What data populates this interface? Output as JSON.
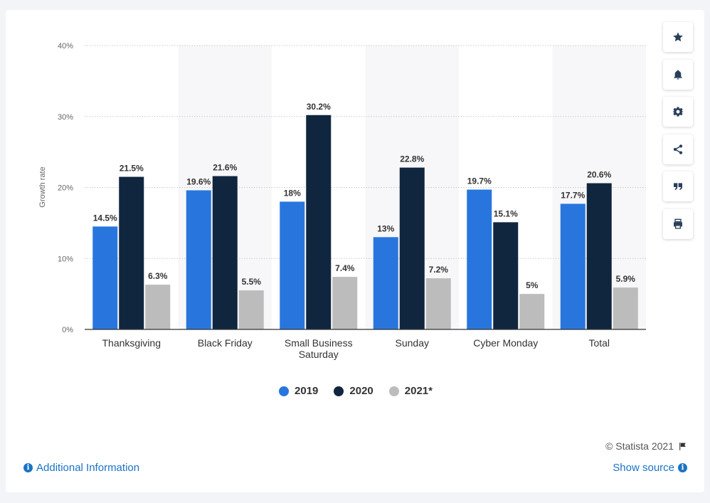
{
  "chart_data": {
    "type": "bar",
    "categories": [
      "Thanksgiving",
      "Black Friday",
      "Small Business Saturday",
      "Sunday",
      "Cyber Monday",
      "Total"
    ],
    "series": [
      {
        "name": "2019",
        "values": [
          14.5,
          19.6,
          18,
          13,
          19.7,
          17.7
        ],
        "labels": [
          "14.5%",
          "19.6%",
          "18%",
          "13%",
          "19.7%",
          "17.7%"
        ],
        "color": "#2876dd"
      },
      {
        "name": "2020",
        "values": [
          21.5,
          21.6,
          30.2,
          22.8,
          15.1,
          20.6
        ],
        "labels": [
          "21.5%",
          "21.6%",
          "30.2%",
          "22.8%",
          "15.1%",
          "20.6%"
        ],
        "color": "#10263f"
      },
      {
        "name": "2021*",
        "values": [
          6.3,
          5.5,
          7.4,
          7.2,
          5,
          5.9
        ],
        "labels": [
          "6.3%",
          "5.5%",
          "7.4%",
          "7.2%",
          "5%",
          "5.9%"
        ],
        "color": "#bcbcbc"
      }
    ],
    "ylabel": "Growth rate",
    "ylim": [
      0,
      40
    ],
    "yticks": [
      0,
      10,
      20,
      30,
      40
    ],
    "ytick_labels": [
      "0%",
      "10%",
      "20%",
      "30%",
      "40%"
    ],
    "grid": true,
    "legend_position": "bottom"
  },
  "sidebar": {
    "buttons": [
      {
        "icon": "star-icon",
        "name": "favorite-button"
      },
      {
        "icon": "bell-icon",
        "name": "notification-button"
      },
      {
        "icon": "gear-icon",
        "name": "settings-button"
      },
      {
        "icon": "share-icon",
        "name": "share-button"
      },
      {
        "icon": "quote-icon",
        "name": "cite-button"
      },
      {
        "icon": "print-icon",
        "name": "print-button"
      }
    ]
  },
  "footer": {
    "copyright": "© Statista 2021",
    "additional_info": "Additional Information",
    "show_source": "Show source"
  }
}
